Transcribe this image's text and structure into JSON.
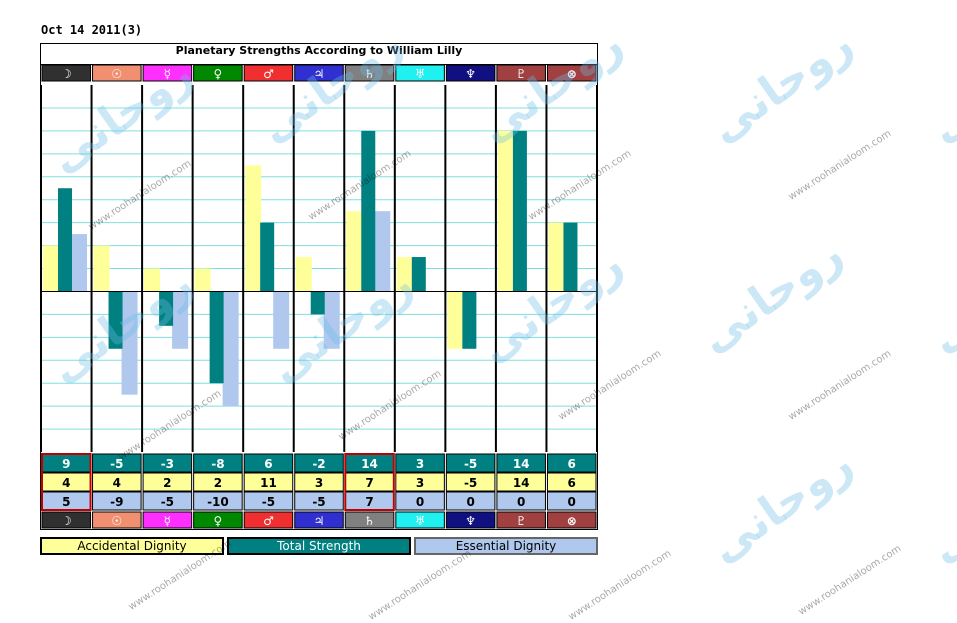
{
  "date_label": "Oct 14 2011(3)",
  "colors": {
    "accidental": "#ffff99",
    "total": "#008080",
    "essential": "#b0c8ee",
    "gridline": "#7fdfdf",
    "highlight": "#c00000"
  },
  "chart_data": {
    "type": "bar",
    "title": "Planetary Strengths According to William Lilly",
    "categories": [
      "☽",
      "☉",
      "☿",
      "♀",
      "♂",
      "♃",
      "♄",
      "♅",
      "♆",
      "♇",
      "⊗"
    ],
    "category_colors": [
      "#303030",
      "#f09070",
      "#ff30ff",
      "#008800",
      "#f03030",
      "#3030d0",
      "#808080",
      "#20f0f0",
      "#101080",
      "#a04040",
      "#a04040"
    ],
    "ylim": [
      -14,
      18
    ],
    "grid": true,
    "legend_position": "bottom",
    "series": [
      {
        "name": "Accidental Dignity",
        "values": [
          4,
          4,
          2,
          2,
          11,
          3,
          7,
          3,
          -5,
          14,
          6
        ]
      },
      {
        "name": "Total Strength",
        "values": [
          9,
          -5,
          -3,
          -8,
          6,
          -2,
          14,
          3,
          -5,
          14,
          6
        ]
      },
      {
        "name": "Essential Dignity",
        "values": [
          5,
          -9,
          -5,
          -10,
          -5,
          -5,
          7,
          0,
          0,
          0,
          0
        ]
      }
    ]
  },
  "watermarks": {
    "url_text": "www.roohanialoom.com",
    "logo_text": "روحانی"
  }
}
